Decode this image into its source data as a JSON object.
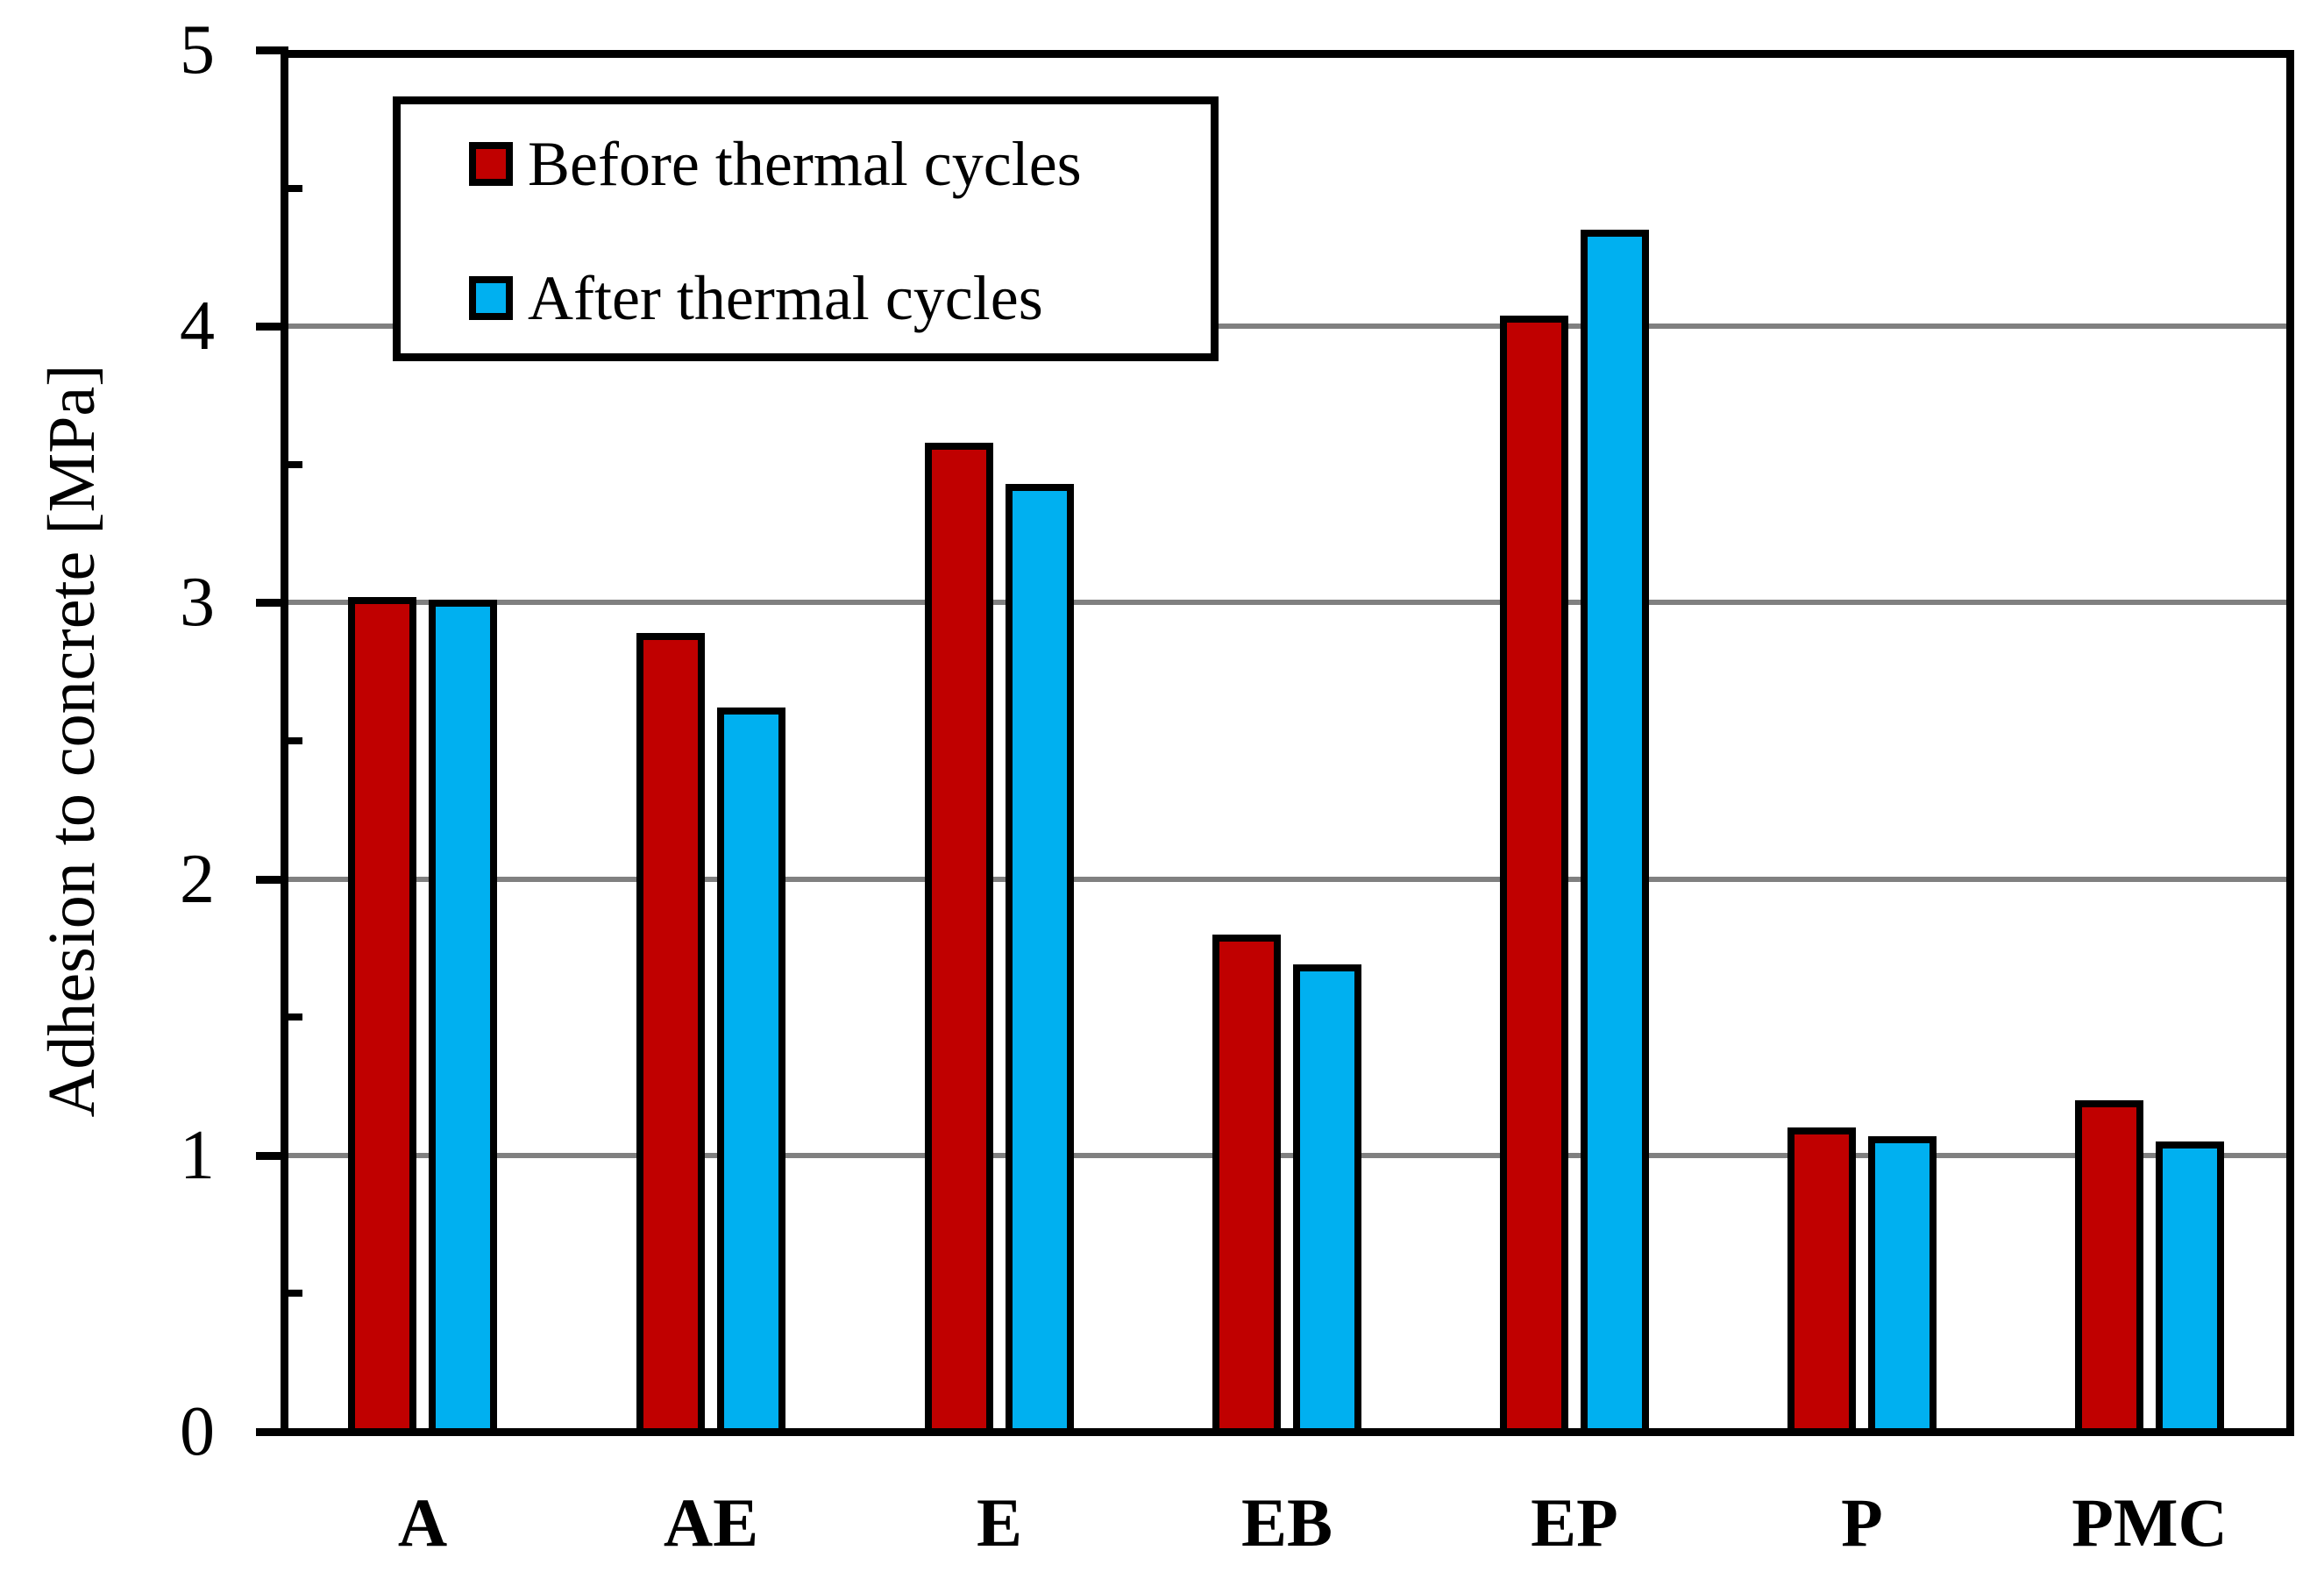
{
  "chart_data": {
    "type": "bar",
    "title": "",
    "xlabel": "",
    "ylabel": "Adhesion to concrete [MPa]",
    "categories": [
      "A",
      "AE",
      "E",
      "EB",
      "EP",
      "P",
      "PMC"
    ],
    "series": [
      {
        "name": "Before thermal cycles",
        "color": "#C00000",
        "values": [
          3.02,
          2.89,
          3.58,
          1.8,
          4.04,
          1.1,
          1.2
        ]
      },
      {
        "name": "After thermal cycles",
        "color": "#00B0F0",
        "values": [
          3.01,
          2.62,
          3.43,
          1.69,
          4.35,
          1.07,
          1.05
        ]
      }
    ],
    "ylim": [
      0,
      5
    ],
    "yticks": [
      "0",
      "1",
      "2",
      "3",
      "4",
      "5"
    ],
    "minor_tick_step": 0.5,
    "grid": {
      "horizontal_major": true,
      "color": "#808080",
      "levels": [
        1,
        2,
        3,
        4
      ]
    },
    "legend": {
      "position": "top-left-inside"
    },
    "axis_color": "#000000",
    "bar_outline_color": "#000000",
    "background": "#FFFFFF"
  }
}
